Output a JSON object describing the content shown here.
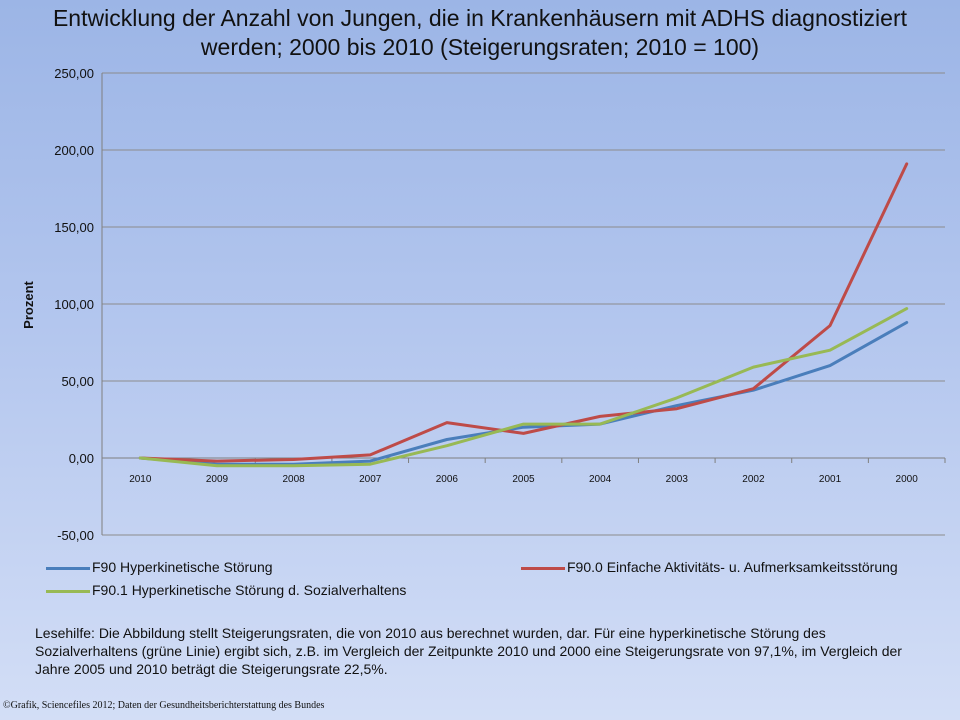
{
  "chart_data": {
    "type": "line",
    "title_line1": "Entwicklung der Anzahl von Jungen, die in Krankenhäusern mit ADHS diagnostiziert",
    "title_line2": "werden; 2000 bis 2010 (Steigerungsraten; 2010 = 100)",
    "ylabel": "Prozent",
    "ylim": [
      -50,
      250
    ],
    "yticks": [
      "250,00",
      "200,00",
      "150,00",
      "100,00",
      "50,00",
      "0,00",
      "-50,00"
    ],
    "categories": [
      "2010",
      "2009",
      "2008",
      "2007",
      "2006",
      "2005",
      "2004",
      "2003",
      "2002",
      "2001",
      "2000"
    ],
    "series": [
      {
        "name": "F90 Hyperkinetische Störung",
        "color": "#4a7ebb",
        "values": [
          0,
          -4,
          -4,
          -2,
          12,
          20,
          22,
          34,
          44,
          60,
          88
        ]
      },
      {
        "name": "F90.0 Einfache Aktivitäts- u. Aufmerksamkeitsstörung",
        "color": "#be4b48",
        "values": [
          0,
          -2,
          -1,
          2,
          23,
          16,
          27,
          32,
          45,
          86,
          191
        ]
      },
      {
        "name": "F90.1 Hyperkinetische Störung d. Sozialverhaltens",
        "color": "#98b954",
        "values": [
          0,
          -5,
          -5,
          -4,
          8,
          22,
          22,
          39,
          59,
          70,
          97
        ]
      }
    ],
    "legend_placement": "bottom"
  },
  "note": "Lesehilfe: Die Abbildung stellt Steigerungsraten, die von 2010 aus berechnet wurden, dar. Für eine hyperkinetische Störung des Sozialverhaltens (grüne Linie) ergibt sich, z.B. im Vergleich der Zeitpunkte 2010 und 2000 eine Steigerungsrate von 97,1%, im Vergleich der Jahre 2005 und 2010 beträgt die Steigerungsrate 22,5%.",
  "credit": "©Grafik, Sciencefiles 2012; Daten der Gesundheitsberichterstattung des Bundes"
}
